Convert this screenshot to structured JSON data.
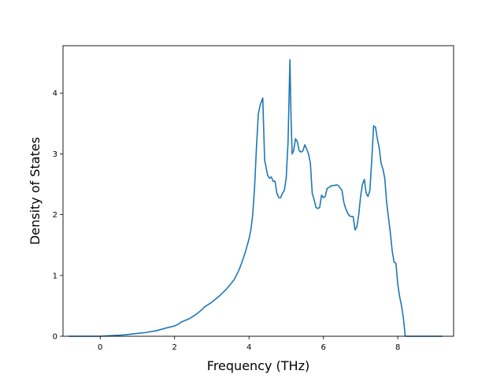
{
  "chart_data": {
    "type": "line",
    "title": "",
    "xlabel": "Frequency (THz)",
    "ylabel": "Density of States",
    "xlim": [
      -1.0,
      9.5
    ],
    "ylim": [
      0,
      4.78
    ],
    "xticks": [
      0,
      2,
      4,
      6,
      8
    ],
    "yticks": [
      0,
      1,
      2,
      3,
      4
    ],
    "xtick_labels": [
      "0",
      "2",
      "4",
      "6",
      "8"
    ],
    "ytick_labels": [
      "0",
      "1",
      "2",
      "3",
      "4"
    ],
    "grid": false,
    "colors": {
      "line": "#1f77b4"
    },
    "series": [
      {
        "x": [
          -0.85,
          -0.5,
          0.0,
          0.3,
          0.6,
          0.9,
          1.2,
          1.5,
          1.8,
          2.0,
          2.1,
          2.2,
          2.4,
          2.5,
          2.6,
          2.7,
          2.8,
          3.0,
          3.2,
          3.4,
          3.6,
          3.7,
          3.75,
          3.8,
          3.9,
          4.0,
          4.05,
          4.1,
          4.15,
          4.2,
          4.25,
          4.3,
          4.37,
          4.42,
          4.5,
          4.55,
          4.6,
          4.65,
          4.7,
          4.75,
          4.8,
          4.85,
          4.9,
          4.95,
          5.0,
          5.05,
          5.1,
          5.13,
          5.16,
          5.2,
          5.25,
          5.3,
          5.35,
          5.4,
          5.45,
          5.5,
          5.55,
          5.6,
          5.65,
          5.7,
          5.75,
          5.8,
          5.85,
          5.9,
          5.95,
          6.0,
          6.05,
          6.1,
          6.15,
          6.2,
          6.25,
          6.3,
          6.35,
          6.4,
          6.5,
          6.55,
          6.6,
          6.65,
          6.7,
          6.75,
          6.8,
          6.85,
          6.9,
          6.95,
          7.0,
          7.05,
          7.1,
          7.15,
          7.2,
          7.25,
          7.3,
          7.35,
          7.4,
          7.45,
          7.5,
          7.55,
          7.6,
          7.65,
          7.7,
          7.75,
          7.8,
          7.85,
          7.9,
          7.95,
          8.0,
          8.05,
          8.1,
          8.15,
          8.2,
          8.25,
          8.3,
          8.35,
          8.4,
          8.6,
          9.2
        ],
        "y": [
          0.0,
          0.0,
          0.0,
          0.01,
          0.02,
          0.04,
          0.06,
          0.09,
          0.14,
          0.17,
          0.2,
          0.24,
          0.29,
          0.33,
          0.37,
          0.42,
          0.48,
          0.56,
          0.66,
          0.78,
          0.93,
          1.05,
          1.12,
          1.2,
          1.38,
          1.6,
          1.75,
          2.0,
          2.45,
          3.1,
          3.65,
          3.8,
          3.92,
          2.9,
          2.65,
          2.6,
          2.62,
          2.55,
          2.55,
          2.35,
          2.28,
          2.28,
          2.35,
          2.4,
          2.6,
          3.2,
          4.55,
          3.6,
          3.0,
          3.05,
          3.25,
          3.2,
          3.05,
          3.03,
          3.05,
          3.15,
          3.08,
          3.0,
          2.85,
          2.35,
          2.25,
          2.12,
          2.1,
          2.12,
          2.32,
          2.28,
          2.3,
          2.43,
          2.45,
          2.47,
          2.48,
          2.48,
          2.49,
          2.48,
          2.4,
          2.2,
          2.1,
          2.03,
          1.98,
          1.97,
          1.97,
          1.75,
          1.8,
          2.0,
          2.3,
          2.5,
          2.58,
          2.35,
          2.3,
          2.4,
          2.9,
          3.46,
          3.44,
          3.25,
          3.1,
          2.85,
          2.75,
          2.6,
          2.2,
          1.95,
          1.7,
          1.4,
          1.22,
          1.2,
          0.85,
          0.65,
          0.5,
          0.3,
          0.0,
          0.0,
          0.0,
          0.0,
          0.0,
          0.0,
          0.0
        ]
      }
    ]
  }
}
